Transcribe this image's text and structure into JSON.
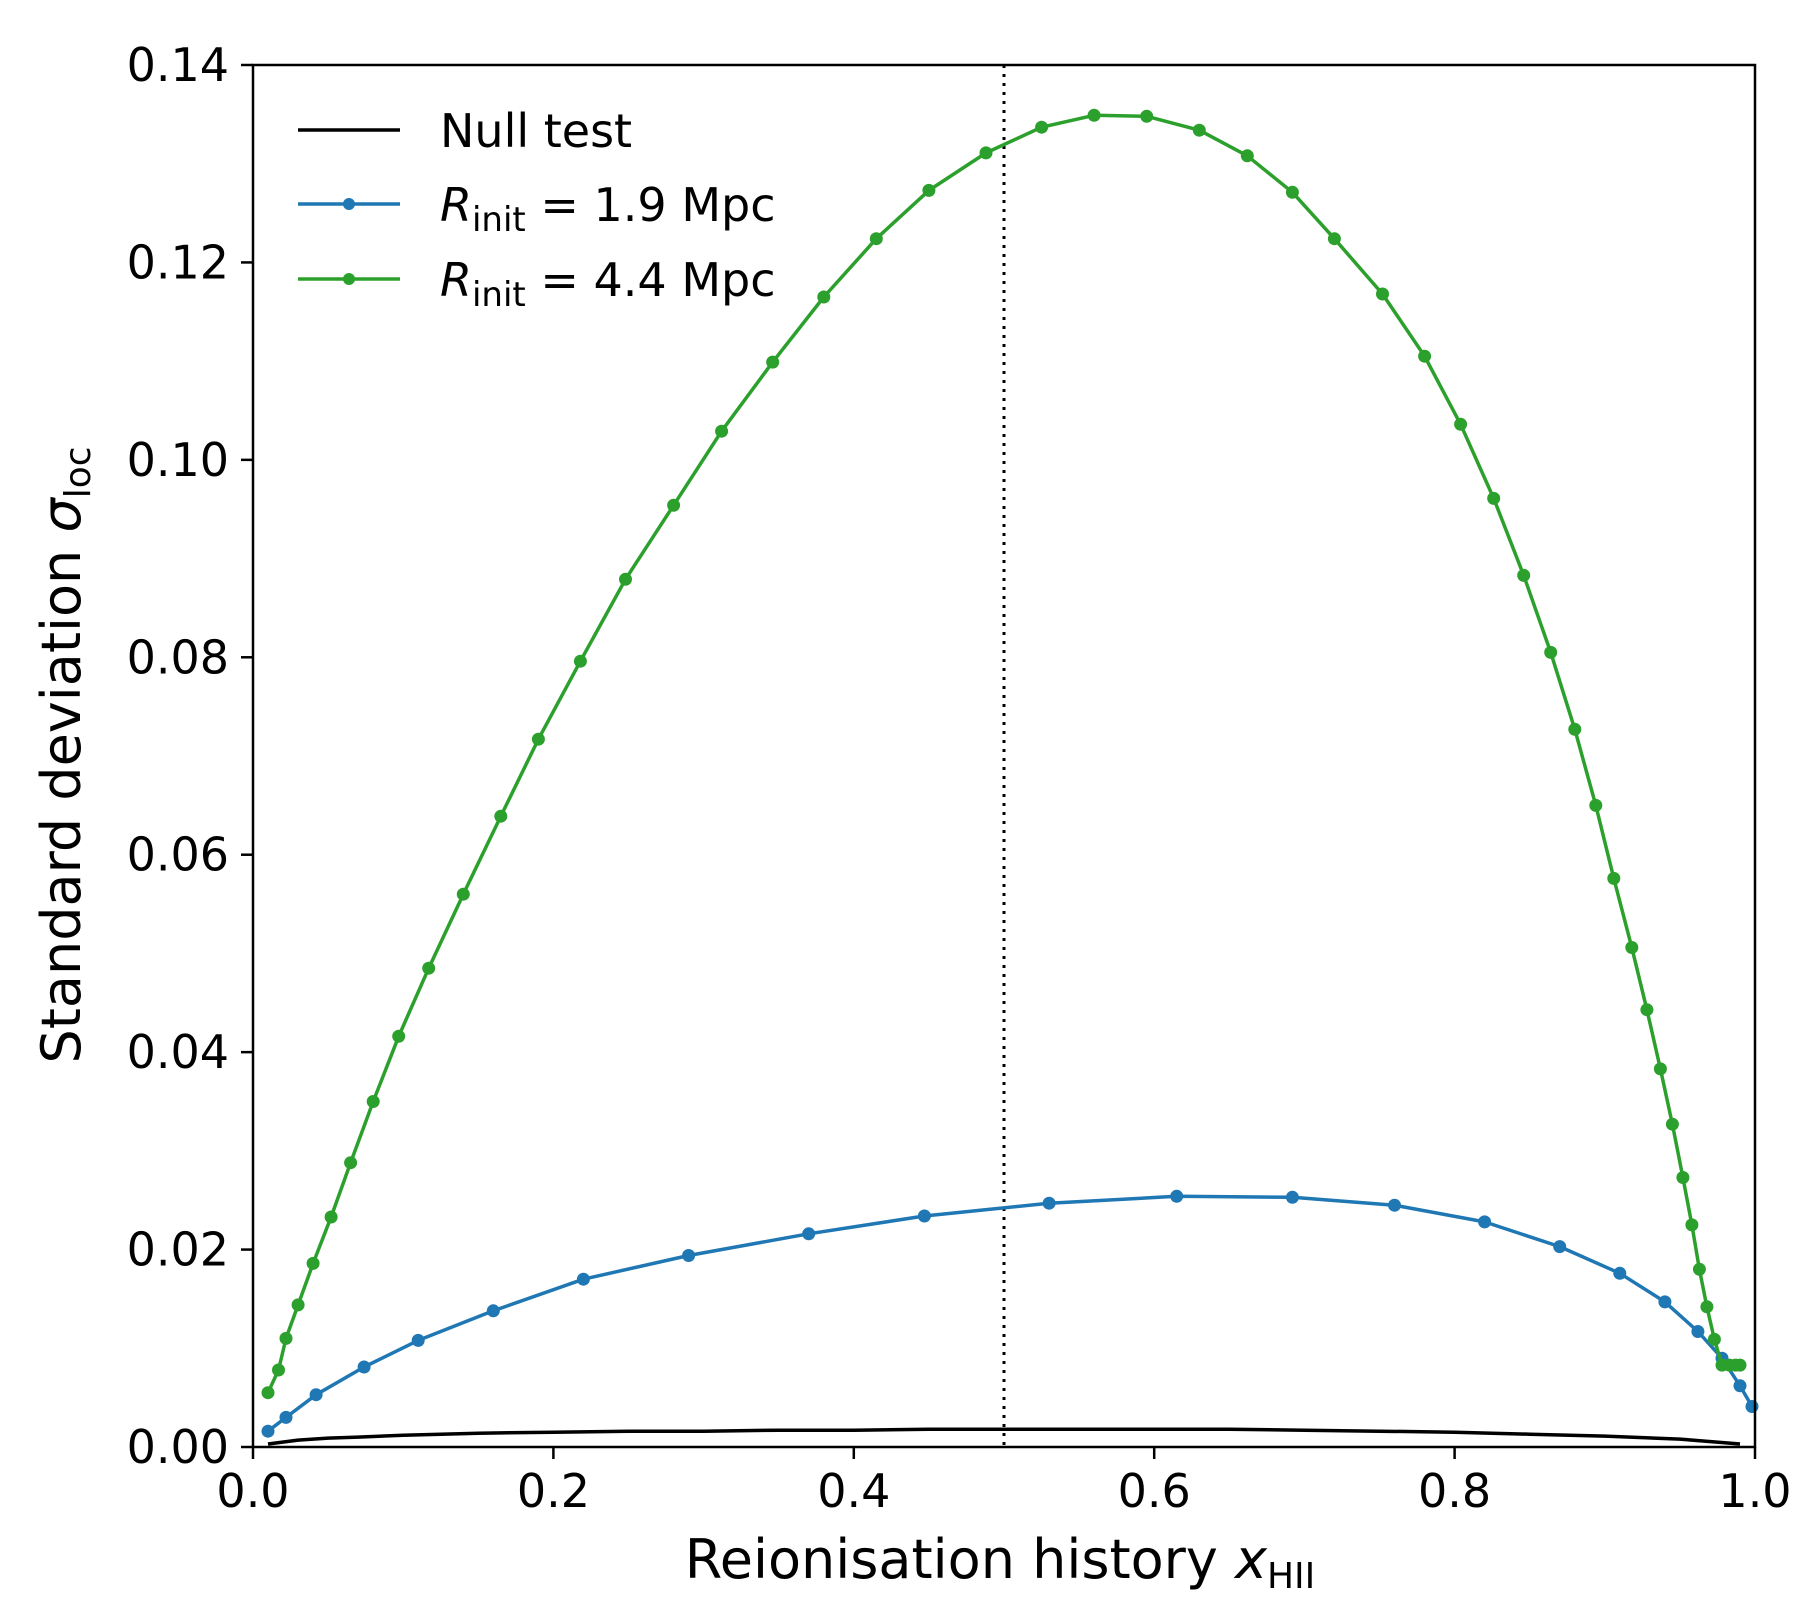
{
  "chart_data": {
    "type": "line",
    "xlabel": "Reionisation history",
    "xlabel_symbol": "x",
    "xlabel_sub": "HII",
    "ylabel": "Standard deviation",
    "ylabel_symbol": "σ",
    "ylabel_sub": "loc",
    "xlim": [
      0.0,
      1.0
    ],
    "ylim": [
      0.0,
      0.14
    ],
    "xticks": [
      "0.0",
      "0.2",
      "0.4",
      "0.6",
      "0.8",
      "1.0"
    ],
    "yticks": [
      "0.00",
      "0.02",
      "0.04",
      "0.06",
      "0.08",
      "0.10",
      "0.12",
      "0.14"
    ],
    "vline": {
      "x": 0.5,
      "style": "dotted"
    },
    "legend_position": "top-left",
    "series": [
      {
        "name": "Null test",
        "color": "#000000",
        "markers": false,
        "x": [
          0.01,
          0.03,
          0.05,
          0.07,
          0.1,
          0.15,
          0.2,
          0.25,
          0.3,
          0.35,
          0.4,
          0.45,
          0.5,
          0.55,
          0.6,
          0.65,
          0.7,
          0.75,
          0.8,
          0.85,
          0.9,
          0.95,
          0.99
        ],
        "y": [
          0.0003,
          0.0007,
          0.0009,
          0.001,
          0.0012,
          0.0014,
          0.0015,
          0.0016,
          0.0016,
          0.0017,
          0.0017,
          0.0018,
          0.0018,
          0.0018,
          0.0018,
          0.0018,
          0.0017,
          0.0016,
          0.0015,
          0.0013,
          0.0011,
          0.0008,
          0.0003
        ]
      },
      {
        "name_prefix": "R",
        "name_sub": "init",
        "name_suffix": " = 1.9 Mpc",
        "color": "#1f77b4",
        "markers": true,
        "x": [
          0.01,
          0.022,
          0.042,
          0.074,
          0.11,
          0.16,
          0.22,
          0.29,
          0.37,
          0.447,
          0.53,
          0.615,
          0.692,
          0.76,
          0.82,
          0.87,
          0.91,
          0.94,
          0.962,
          0.978,
          0.99,
          0.998
        ],
        "y": [
          0.0016,
          0.003,
          0.0053,
          0.0081,
          0.0108,
          0.0138,
          0.017,
          0.0194,
          0.0216,
          0.0234,
          0.0247,
          0.0254,
          0.0253,
          0.0245,
          0.0228,
          0.0203,
          0.0176,
          0.0147,
          0.0117,
          0.009,
          0.0062,
          0.0041
        ]
      },
      {
        "name_prefix": "R",
        "name_sub": "init",
        "name_suffix": " = 4.4 Mpc",
        "color": "#2ca02c",
        "markers": true,
        "x": [
          0.01,
          0.017,
          0.022,
          0.03,
          0.04,
          0.052,
          0.065,
          0.08,
          0.097,
          0.117,
          0.14,
          0.165,
          0.19,
          0.218,
          0.248,
          0.28,
          0.312,
          0.346,
          0.38,
          0.415,
          0.45,
          0.488,
          0.525,
          0.56,
          0.595,
          0.63,
          0.662,
          0.692,
          0.72,
          0.752,
          0.78,
          0.804,
          0.826,
          0.846,
          0.864,
          0.88,
          0.894,
          0.906,
          0.918,
          0.928,
          0.937,
          0.945,
          0.952,
          0.958,
          0.963,
          0.968,
          0.973,
          0.978,
          0.983,
          0.987,
          0.99
        ],
        "y": [
          0.0055,
          0.0078,
          0.011,
          0.0144,
          0.0186,
          0.0233,
          0.0288,
          0.035,
          0.0416,
          0.0485,
          0.056,
          0.0639,
          0.0717,
          0.0796,
          0.0879,
          0.0954,
          0.1029,
          0.1099,
          0.1165,
          0.1224,
          0.1273,
          0.1311,
          0.1337,
          0.1349,
          0.1348,
          0.1334,
          0.1308,
          0.1271,
          0.1224,
          0.1168,
          0.1105,
          0.1036,
          0.0961,
          0.0883,
          0.0805,
          0.0727,
          0.065,
          0.0576,
          0.0506,
          0.0443,
          0.0383,
          0.0327,
          0.0273,
          0.0225,
          0.018,
          0.0142,
          0.0109,
          0.0083,
          0.0083,
          0.0083,
          0.0083
        ]
      }
    ]
  }
}
